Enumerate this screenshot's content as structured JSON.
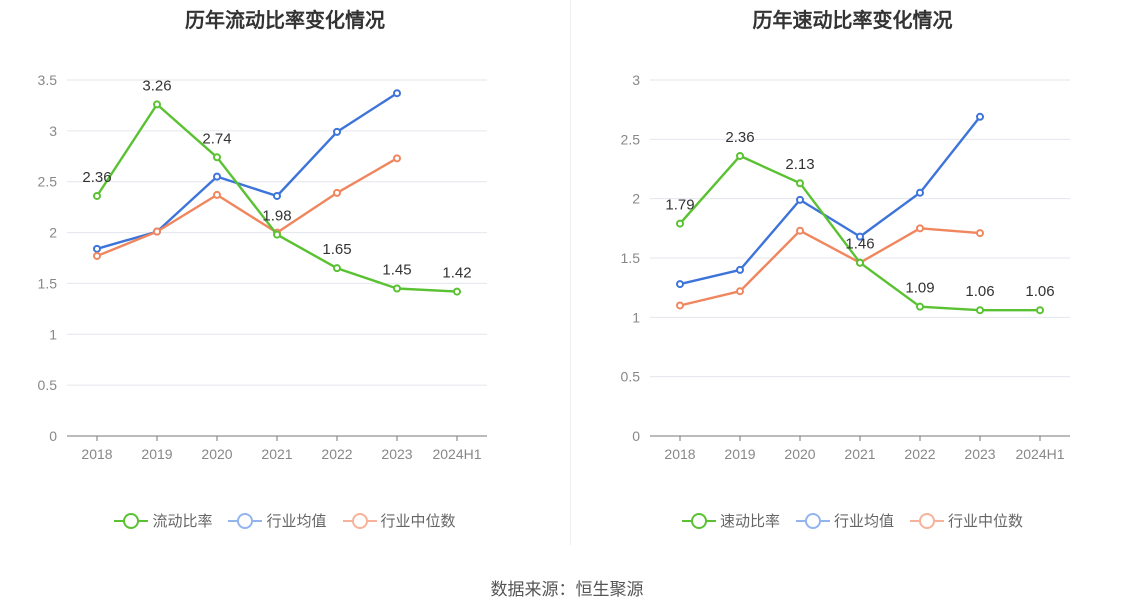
{
  "source": "数据来源：恒生聚源",
  "chart_data": [
    {
      "type": "line",
      "title": "历年流动比率变化情况",
      "categories": [
        "2018",
        "2019",
        "2020",
        "2021",
        "2022",
        "2023",
        "2024H1"
      ],
      "ylim": [
        0,
        3.5
      ],
      "yticks": [
        "0",
        "0.5",
        "1",
        "1.5",
        "2",
        "2.5",
        "3",
        "3.5"
      ],
      "grid": true,
      "legend_position": "bottom",
      "series": [
        {
          "name": "流动比率",
          "color": "#5ac232",
          "values": [
            2.36,
            3.26,
            2.74,
            1.98,
            1.65,
            1.45,
            1.42
          ],
          "labels": [
            "2.36",
            "3.26",
            "2.74",
            "1.98",
            "1.65",
            "1.45",
            "1.42"
          ]
        },
        {
          "name": "行业均值",
          "color": "#3d74d9",
          "values": [
            1.84,
            2.01,
            2.55,
            2.36,
            2.99,
            3.37,
            null
          ]
        },
        {
          "name": "行业中位数",
          "color": "#f0865e",
          "values": [
            1.77,
            2.01,
            2.37,
            2.0,
            2.39,
            2.73,
            null
          ]
        }
      ]
    },
    {
      "type": "line",
      "title": "历年速动比率变化情况",
      "categories": [
        "2018",
        "2019",
        "2020",
        "2021",
        "2022",
        "2023",
        "2024H1"
      ],
      "ylim": [
        0,
        3
      ],
      "yticks": [
        "0",
        "0.5",
        "1",
        "1.5",
        "2",
        "2.5",
        "3"
      ],
      "grid": true,
      "legend_position": "bottom",
      "series": [
        {
          "name": "速动比率",
          "color": "#5ac232",
          "values": [
            1.79,
            2.36,
            2.13,
            1.46,
            1.09,
            1.06,
            1.06
          ],
          "labels": [
            "1.79",
            "2.36",
            "2.13",
            "1.46",
            "1.09",
            "1.06",
            "1.06"
          ]
        },
        {
          "name": "行业均值",
          "color": "#3d74d9",
          "values": [
            1.28,
            1.4,
            1.99,
            1.68,
            2.05,
            2.69,
            null
          ]
        },
        {
          "name": "行业中位数",
          "color": "#f0865e",
          "values": [
            1.1,
            1.22,
            1.73,
            1.46,
            1.75,
            1.71,
            null
          ]
        }
      ]
    }
  ]
}
